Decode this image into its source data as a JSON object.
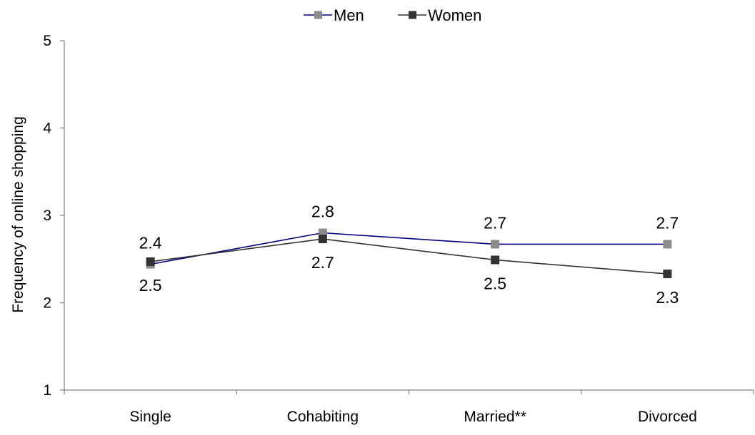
{
  "chart_data": {
    "type": "line",
    "categories": [
      "Single",
      "Cohabiting",
      "Married**",
      "Divorced"
    ],
    "ylabel": "Frequency of online shopping",
    "xlabel": "",
    "ylim": [
      1,
      5
    ],
    "yticks": [
      1,
      2,
      3,
      4,
      5
    ],
    "grid": false,
    "legend": "top-center",
    "series": [
      {
        "name": "Men",
        "values": [
          2.44,
          2.8,
          2.67,
          2.67
        ],
        "labels": [
          "2.4",
          "2.8",
          "2.7",
          "2.7"
        ],
        "label_position": [
          "above",
          "above",
          "above",
          "above"
        ],
        "line_color": "#000080",
        "marker_color": "#8c8c8c"
      },
      {
        "name": "Women",
        "values": [
          2.47,
          2.73,
          2.49,
          2.33
        ],
        "labels": [
          "2.5",
          "2.7",
          "2.5",
          "2.3"
        ],
        "label_position": [
          "below",
          "below",
          "below",
          "below"
        ],
        "line_color": "#333333",
        "marker_color": "#333333"
      }
    ]
  }
}
